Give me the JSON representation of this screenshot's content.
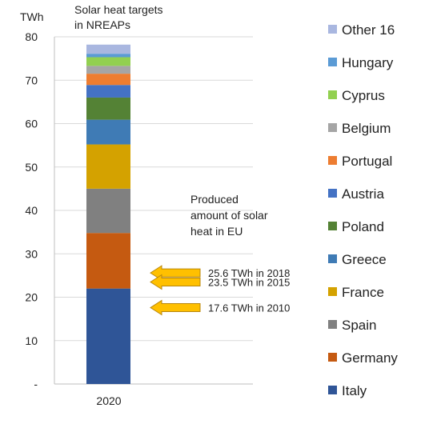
{
  "chart_data": {
    "type": "bar",
    "stacked": true,
    "unit": "TWh",
    "title": "Solar heat targets in NREAPs",
    "categories": [
      "2020"
    ],
    "ylim": [
      0,
      80
    ],
    "yticks": [
      "-",
      "10",
      "20",
      "30",
      "40",
      "50",
      "60",
      "70",
      "80"
    ],
    "grid": true,
    "legend_position": "right",
    "series": [
      {
        "name": "Italy",
        "values": [
          22.0
        ],
        "color": "#2f5597"
      },
      {
        "name": "Germany",
        "values": [
          12.8
        ],
        "color": "#c55a11"
      },
      {
        "name": "Spain",
        "values": [
          10.2
        ],
        "color": "#808080"
      },
      {
        "name": "France",
        "values": [
          10.2
        ],
        "color": "#d4a200"
      },
      {
        "name": "Greece",
        "values": [
          5.7
        ],
        "color": "#3f7bb5"
      },
      {
        "name": "Poland",
        "values": [
          5.1
        ],
        "color": "#548235"
      },
      {
        "name": "Austria",
        "values": [
          2.9
        ],
        "color": "#4472c4"
      },
      {
        "name": "Portugal",
        "values": [
          2.6
        ],
        "color": "#ed7d31"
      },
      {
        "name": "Belgium",
        "values": [
          1.8
        ],
        "color": "#a5a5a5"
      },
      {
        "name": "Cyprus",
        "values": [
          2.0
        ],
        "color": "#92d050"
      },
      {
        "name": "Hungary",
        "values": [
          0.8
        ],
        "color": "#5b9bd5"
      },
      {
        "name": "Other 16",
        "values": [
          2.1
        ],
        "color": "#a9b7e0"
      }
    ],
    "annotation_title": [
      "Produced",
      "amount of solar",
      "heat in EU"
    ],
    "annotations": [
      {
        "y": 25.6,
        "label": "25.6 TWh in 2018"
      },
      {
        "y": 23.5,
        "label": "23.5 TWh in 2015"
      },
      {
        "y": 17.6,
        "label": "17.6 TWh in 2010"
      }
    ],
    "arrow_color": "#ffc000"
  }
}
